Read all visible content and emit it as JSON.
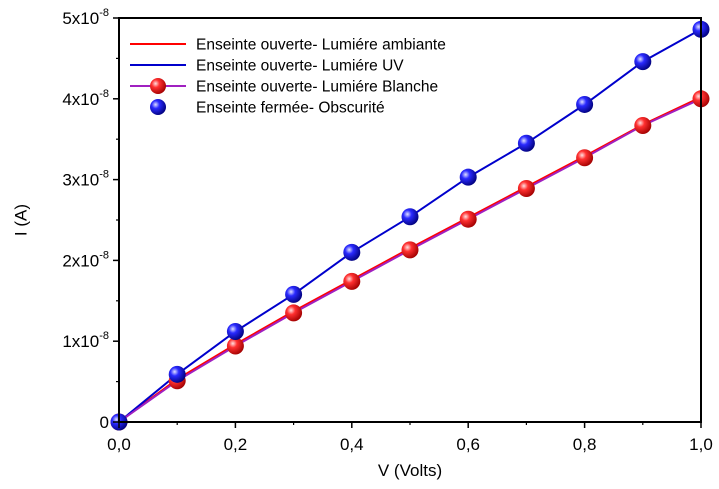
{
  "chart_data": {
    "type": "line",
    "xlabel": "V (Volts)",
    "ylabel": "I (A)",
    "xlim": [
      0.0,
      1.0
    ],
    "ylim": [
      0,
      5e-08
    ],
    "x_ticks": [
      {
        "value": 0.0,
        "label": "0,0"
      },
      {
        "value": 0.2,
        "label": "0,2"
      },
      {
        "value": 0.4,
        "label": "0,4"
      },
      {
        "value": 0.6,
        "label": "0,6"
      },
      {
        "value": 0.8,
        "label": "0,8"
      },
      {
        "value": 1.0,
        "label": "1,0"
      }
    ],
    "y_ticks": [
      {
        "value": 0,
        "mantissa": "0",
        "exponent": ""
      },
      {
        "value": 1e-08,
        "mantissa": "1x10",
        "exponent": "-8"
      },
      {
        "value": 2e-08,
        "mantissa": "2x10",
        "exponent": "-8"
      },
      {
        "value": 3e-08,
        "mantissa": "3x10",
        "exponent": "-8"
      },
      {
        "value": 4e-08,
        "mantissa": "4x10",
        "exponent": "-8"
      },
      {
        "value": 5e-08,
        "mantissa": "5x10",
        "exponent": "-8"
      }
    ],
    "legend_position": "top-left",
    "x": [
      0.0,
      0.1,
      0.2,
      0.3,
      0.4,
      0.5,
      0.6,
      0.7,
      0.8,
      0.9,
      1.0
    ],
    "series": [
      {
        "name": "Enseinte ouverte- Lumiére ambiante",
        "style": "line",
        "color": "#ff0000",
        "values": [
          0,
          5.3e-09,
          9.6e-09,
          1.37e-08,
          1.76e-08,
          2.15e-08,
          2.53e-08,
          2.91e-08,
          3.29e-08,
          3.68e-08,
          4.02e-08
        ]
      },
      {
        "name": "Enseinte ouverte- Lumiére UV",
        "style": "line",
        "color": "#0000cc",
        "values": [
          0,
          5.9e-09,
          1.12e-08,
          1.58e-08,
          2.1e-08,
          2.54e-08,
          3.03e-08,
          3.45e-08,
          3.93e-08,
          4.46e-08,
          4.86e-08
        ]
      },
      {
        "name": "Enseinte ouverte- Lumiére Blanche",
        "style": "line-marker",
        "color": "#ee1111",
        "line_color": "#a020c0",
        "values": [
          0,
          5.1e-09,
          9.4e-09,
          1.35e-08,
          1.74e-08,
          2.13e-08,
          2.51e-08,
          2.89e-08,
          3.27e-08,
          3.67e-08,
          4e-08
        ]
      },
      {
        "name": "Enseinte fermée- Obscurité",
        "style": "marker",
        "color": "#1a1ae0",
        "values": [
          0,
          5.9e-09,
          1.12e-08,
          1.58e-08,
          2.1e-08,
          2.54e-08,
          3.03e-08,
          3.45e-08,
          3.93e-08,
          4.46e-08,
          4.86e-08
        ]
      }
    ]
  }
}
